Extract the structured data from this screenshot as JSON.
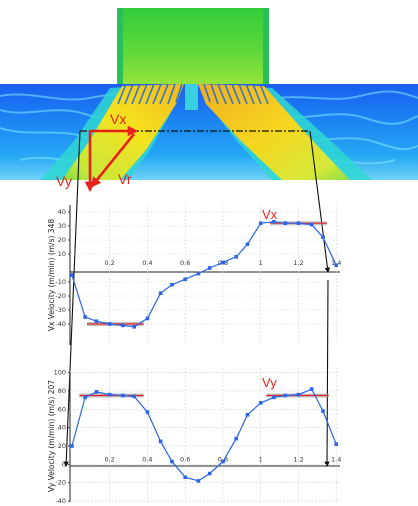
{
  "contour": {
    "labels": {
      "vx": "Vx",
      "vy": "Vy",
      "vr": "Vr"
    },
    "colors": {
      "arrow": "#e8201c",
      "section_line": "#111111"
    }
  },
  "chart_data": [
    {
      "type": "line",
      "title": "",
      "xlabel": "",
      "ylabel": "Vx Velocity (m/min) (m/s)",
      "ylabel_unit_bracket": "348",
      "series_label": "Vx",
      "xlim": [
        -0.01,
        1.42
      ],
      "ylim": [
        -55,
        45
      ],
      "x_ticks": [
        0.2,
        0.4,
        0.6,
        0.8,
        1,
        1.2,
        1.4
      ],
      "x_tick_labels": [
        "0.2",
        "0.4",
        "0.6",
        "0.8",
        "1",
        "1.2",
        "1.4"
      ],
      "y_ticks": [
        40,
        30,
        20,
        10,
        -10,
        -20,
        -30,
        -40
      ],
      "y_tick_labels": [
        "40",
        "30",
        "20",
        "10",
        "-10",
        "-20",
        "-30",
        "-40"
      ],
      "x": [
        0.0,
        0.07,
        0.13,
        0.2,
        0.27,
        0.33,
        0.4,
        0.47,
        0.53,
        0.6,
        0.67,
        0.73,
        0.8,
        0.87,
        0.93,
        1.0,
        1.07,
        1.13,
        1.2,
        1.27,
        1.33,
        1.4
      ],
      "values": [
        -5,
        -35,
        -38,
        -40,
        -41,
        -42,
        -36,
        -18,
        -12,
        -8,
        -4,
        0,
        4,
        8,
        17,
        32,
        33,
        32,
        32,
        31,
        22,
        2
      ],
      "avg_left": {
        "x": [
          0.08,
          0.38
        ],
        "y": -40
      },
      "avg_right": {
        "x": [
          1.05,
          1.35
        ],
        "y": 32
      }
    },
    {
      "type": "line",
      "title": "",
      "xlabel": "",
      "ylabel": "Vy Velocity (m/min) (m/s)",
      "ylabel_unit_bracket": "207",
      "series_label": "Vy",
      "xlim": [
        -0.01,
        1.42
      ],
      "ylim": [
        -41,
        105
      ],
      "x_ticks": [
        0.2,
        0.4,
        0.6,
        0.8,
        1,
        1.2,
        1.4
      ],
      "x_tick_labels": [
        "0.2",
        "0.4",
        "0.6",
        "0.8",
        "1",
        "1.2",
        "1.4"
      ],
      "y_ticks": [
        100,
        80,
        60,
        40,
        20,
        0,
        -20,
        -40
      ],
      "y_tick_labels": [
        "100",
        "80",
        "60",
        "40",
        "20",
        "0",
        "-20",
        "-40"
      ],
      "x": [
        0.0,
        0.07,
        0.13,
        0.2,
        0.27,
        0.33,
        0.4,
        0.47,
        0.53,
        0.6,
        0.67,
        0.73,
        0.8,
        0.87,
        0.93,
        1.0,
        1.07,
        1.13,
        1.2,
        1.27,
        1.33,
        1.4
      ],
      "values": [
        20,
        73,
        79,
        76,
        75,
        74,
        57,
        25,
        3,
        -14,
        -18,
        -10,
        3,
        28,
        54,
        67,
        73,
        75,
        76,
        82,
        58,
        22
      ],
      "avg_left": {
        "x": [
          0.04,
          0.38
        ],
        "y": 75
      },
      "avg_right": {
        "x": [
          1.03,
          1.36
        ],
        "y": 75
      }
    }
  ]
}
